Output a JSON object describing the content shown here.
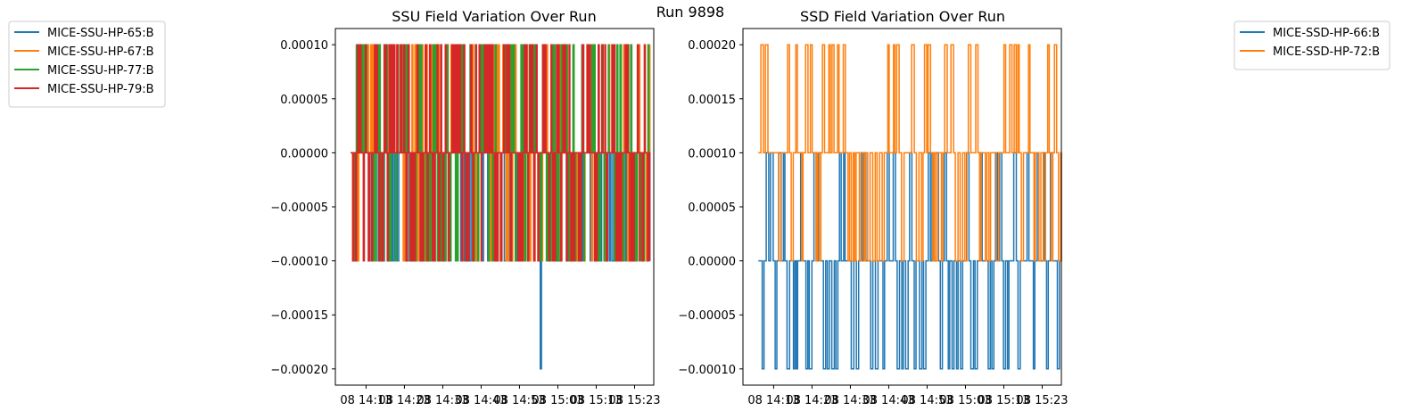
{
  "suptitle": "Run 9898",
  "chart_data": [
    {
      "type": "line",
      "title": "SSU Field Variation Over Run",
      "xlabel": "",
      "ylabel": "",
      "ylim": [
        -0.000215,
        0.000115
      ],
      "yticks": [
        -0.0002,
        -0.00015,
        -0.0001,
        -5e-05,
        0,
        5e-05,
        0.0001
      ],
      "ytick_labels": [
        "−0.00020",
        "−0.00015",
        "−0.00010",
        "−0.00005",
        "0.00000",
        "0.00005",
        "0.00010"
      ],
      "x_range": [
        "14:05",
        "15:28"
      ],
      "xticks": [
        "14:13",
        "14:23",
        "14:33",
        "14:43",
        "14:53",
        "15:03",
        "15:13",
        "15:23"
      ],
      "xtick_labels": [
        "08 14:13",
        "08 14:23",
        "08 14:33",
        "08 14:43",
        "08 14:53",
        "08 15:03",
        "08 15:13",
        "08 15:23"
      ],
      "data_start": "14:09",
      "data_end": "15:27",
      "legend_position": "outside-left",
      "series": [
        {
          "name": "MICE-SSU-HP-65:B",
          "color": "#1f77b4",
          "baseline": 0,
          "levels": [
            0,
            -0.0001
          ],
          "spike": {
            "time": "14:58",
            "value": -0.0002
          }
        },
        {
          "name": "MICE-SSU-HP-67:B",
          "color": "#ff7f0e",
          "baseline": 0,
          "levels": [
            0.0001,
            -0.0001
          ]
        },
        {
          "name": "MICE-SSU-HP-77:B",
          "color": "#2ca02c",
          "baseline": 0,
          "levels": [
            0.0001,
            -0.0001
          ]
        },
        {
          "name": "MICE-SSU-HP-79:B",
          "color": "#d62728",
          "baseline": 0,
          "levels": [
            0.0001,
            -0.0001
          ]
        }
      ]
    },
    {
      "type": "line",
      "title": "SSD Field Variation Over Run",
      "xlabel": "",
      "ylabel": "",
      "ylim": [
        -0.000115,
        0.000215
      ],
      "yticks": [
        -0.0001,
        -5e-05,
        0,
        5e-05,
        0.0001,
        0.00015,
        0.0002
      ],
      "ytick_labels": [
        "−0.00010",
        "−0.00005",
        "0.00000",
        "0.00005",
        "0.00010",
        "0.00015",
        "0.00020"
      ],
      "x_range": [
        "14:05",
        "15:28"
      ],
      "xticks": [
        "14:13",
        "14:23",
        "14:33",
        "14:43",
        "14:53",
        "15:03",
        "15:13",
        "15:23"
      ],
      "xtick_labels": [
        "08 14:13",
        "08 14:23",
        "08 14:33",
        "08 14:43",
        "08 14:53",
        "08 15:03",
        "08 15:13",
        "08 15:23"
      ],
      "data_start": "14:09",
      "data_end": "15:28",
      "legend_position": "outside-right",
      "series": [
        {
          "name": "MICE-SSD-HP-66:B",
          "color": "#1f77b4",
          "baseline": 0,
          "levels": [
            -0.0001,
            0.0001
          ]
        },
        {
          "name": "MICE-SSD-HP-72:B",
          "color": "#ff7f0e",
          "baseline": 0.0001,
          "levels": [
            0.0002,
            0
          ]
        }
      ]
    }
  ]
}
